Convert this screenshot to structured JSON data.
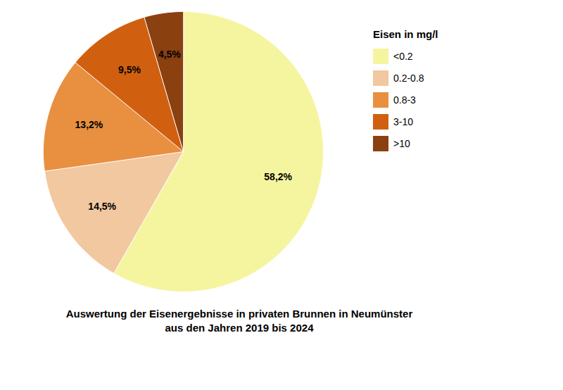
{
  "chart_data": {
    "type": "pie",
    "title": "Auswertung der Eisenergebnisse in privaten Brunnen in Neumünster",
    "subtitle": "aus den Jahren 2019 bis 2024",
    "legend_title": "Eisen in mg/l",
    "categories": [
      "<0.2",
      "0.2-0.8",
      "0.8-3",
      "3-10",
      ">10"
    ],
    "values": [
      58.2,
      14.5,
      13.2,
      9.5,
      4.5
    ],
    "value_labels": [
      "58,2%",
      "14,5%",
      "13,2%",
      "9,5%",
      "4,5%"
    ],
    "colors": [
      "#F5F5A0",
      "#F2C8A0",
      "#E89040",
      "#D06010",
      "#8B4010"
    ],
    "data_labels": true,
    "legend": "upper right"
  }
}
